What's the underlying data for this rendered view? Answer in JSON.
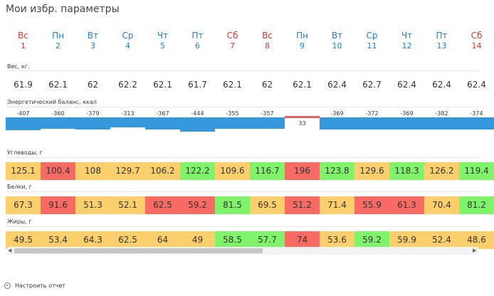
{
  "title": "Мои избр. параметры",
  "days": [
    {
      "name": "Вс",
      "num": "1",
      "weekend": true
    },
    {
      "name": "Пн",
      "num": "2",
      "weekend": false
    },
    {
      "name": "Вт",
      "num": "3",
      "weekend": false
    },
    {
      "name": "Ср",
      "num": "4",
      "weekend": false
    },
    {
      "name": "Чт",
      "num": "5",
      "weekend": false
    },
    {
      "name": "Пт",
      "num": "6",
      "weekend": false
    },
    {
      "name": "Сб",
      "num": "7",
      "weekend": true
    },
    {
      "name": "Вс",
      "num": "8",
      "weekend": true
    },
    {
      "name": "Пн",
      "num": "9",
      "weekend": false
    },
    {
      "name": "Вт",
      "num": "10",
      "weekend": false
    },
    {
      "name": "Ср",
      "num": "11",
      "weekend": false
    },
    {
      "name": "Чт",
      "num": "12",
      "weekend": false
    },
    {
      "name": "Пт",
      "num": "13",
      "weekend": false
    },
    {
      "name": "Сб",
      "num": "14",
      "weekend": true
    }
  ],
  "weight": {
    "label": "Вес, кг.",
    "values": [
      "61.9",
      "62.1",
      "62",
      "62.2",
      "62.1",
      "61.7",
      "62.1",
      "62",
      "62.1",
      "62.4",
      "62.7",
      "62.4",
      "62.4",
      "62.4"
    ]
  },
  "energy": {
    "label": "Энергетический баланс, ккал",
    "values": [
      "-407",
      "-360",
      "-379",
      "-313",
      "-367",
      "-444",
      "-355",
      "-357",
      "33",
      "-369",
      "-372",
      "-369",
      "-382",
      "-374"
    ]
  },
  "carbs": {
    "label": "Углеводы, г",
    "values": [
      "125.1",
      "100.4",
      "108",
      "129.7",
      "106.2",
      "122.2",
      "109.6",
      "116.7",
      "196",
      "123.8",
      "129.6",
      "118.3",
      "126.2",
      "119.4"
    ],
    "status": [
      "y",
      "r",
      "y",
      "y",
      "y",
      "g",
      "y",
      "g",
      "r",
      "g",
      "y",
      "g",
      "y",
      "g"
    ]
  },
  "protein": {
    "label": "Белки, г",
    "values": [
      "67.3",
      "91.6",
      "51.3",
      "52.1",
      "62.5",
      "59.2",
      "81.5",
      "69.5",
      "51.2",
      "71.4",
      "55.9",
      "61.3",
      "70.4",
      "81.2"
    ],
    "status": [
      "y",
      "r",
      "y",
      "y",
      "r",
      "r",
      "g",
      "y",
      "r",
      "y",
      "r",
      "r",
      "y",
      "g"
    ]
  },
  "fat": {
    "label": "Жиры, г",
    "values": [
      "49.5",
      "53.4",
      "64.3",
      "62.5",
      "64",
      "49",
      "58.5",
      "57.7",
      "74",
      "53.6",
      "59.2",
      "59.9",
      "52.4",
      "48.6"
    ],
    "status": [
      "y",
      "y",
      "y",
      "y",
      "y",
      "y",
      "g",
      "g",
      "r",
      "y",
      "g",
      "y",
      "y",
      "y"
    ]
  },
  "colors": {
    "weekend": "#d9352f",
    "weekday": "#1e7ec9",
    "bar_negative": "#3598dc",
    "bar_positive": "#e0625d",
    "cell_yellow": "#fbcf6c",
    "cell_red": "#f86a64",
    "cell_green": "#7ff46b"
  },
  "footer": {
    "label": "Настроить отчет",
    "icon": "gear-icon"
  },
  "scroll": {
    "left_arrow": "◀",
    "right_arrow": "▶"
  }
}
